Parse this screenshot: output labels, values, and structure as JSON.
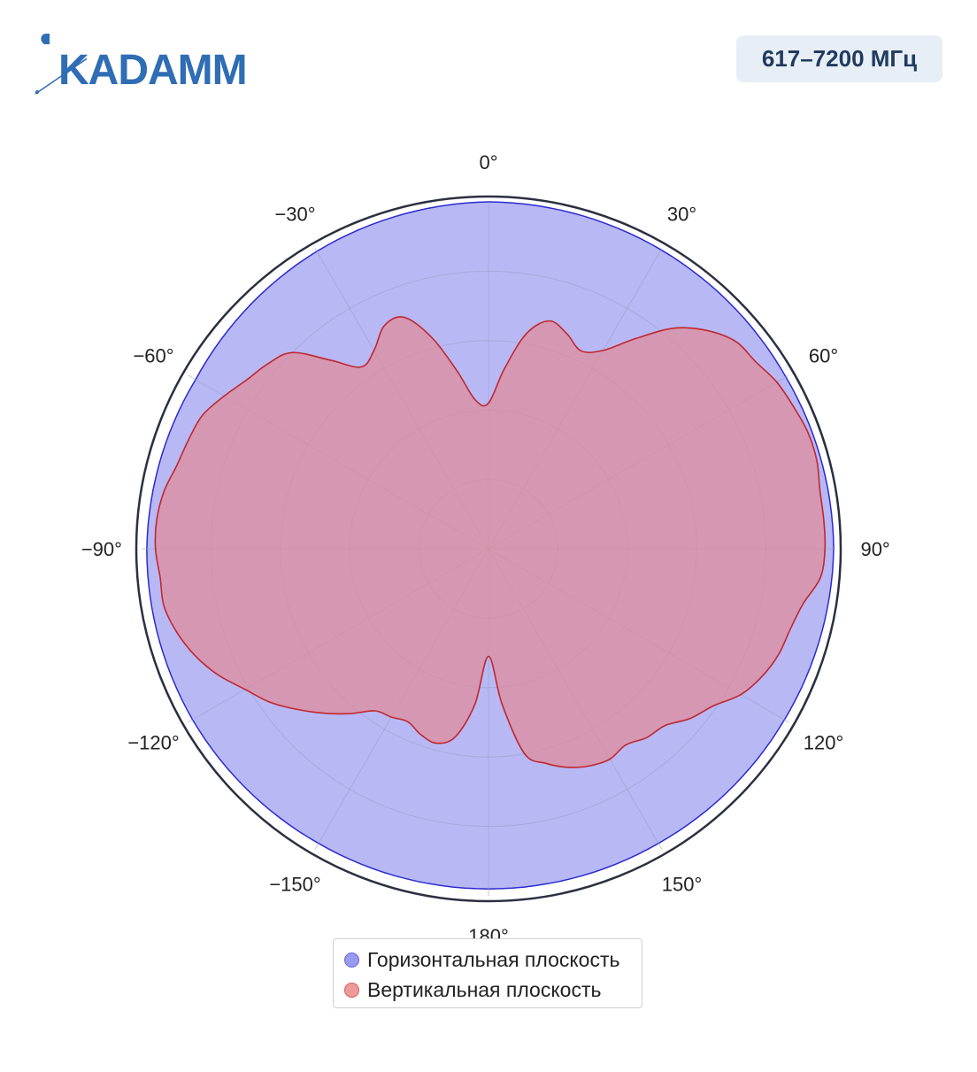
{
  "header": {
    "logo_text": "KADAMM",
    "frequency_badge": "617–7200 МГц"
  },
  "colors": {
    "horizontal_fill": "#b8b8f5",
    "horizontal_stroke": "#2a2ad0",
    "vertical_fill": "#e08a98",
    "vertical_stroke": "#c0272d",
    "outer_ring": "#2b3040",
    "grid": "#9aa2c8",
    "badge_text": "#1f3b60",
    "logo": "#2f6db5"
  },
  "chart_data": {
    "type": "polar",
    "title": "",
    "angular_unit": "degrees",
    "angular_direction": "clockwise",
    "zero_at": "top",
    "angle_labels": [
      "0°",
      "30°",
      "60°",
      "90°",
      "120°",
      "150°",
      "180°",
      "−150°",
      "−120°",
      "−90°",
      "−60°",
      "−30°"
    ],
    "radial_range": [
      0,
      1
    ],
    "grid": true,
    "legend_position": "bottom",
    "series": [
      {
        "name": "Горизонтальная плоскость",
        "color": "#b8b8f5",
        "angles": [
          0,
          30,
          60,
          90,
          120,
          150,
          180,
          -150,
          -120,
          -90,
          -60,
          -30
        ],
        "values": [
          1.0,
          0.995,
          0.99,
          0.995,
          0.985,
          0.98,
          0.98,
          0.98,
          0.985,
          0.985,
          0.975,
          0.99
        ]
      },
      {
        "name": "Вертикальная плоскость",
        "color": "#e08a98",
        "angles": [
          0,
          5,
          10,
          15,
          20,
          25,
          30,
          35,
          40,
          45,
          50,
          55,
          60,
          65,
          70,
          75,
          80,
          85,
          90,
          95,
          100,
          105,
          110,
          115,
          120,
          125,
          130,
          135,
          140,
          145,
          150,
          155,
          160,
          165,
          170,
          175,
          180,
          -175,
          -170,
          -165,
          -160,
          -155,
          -150,
          -145,
          -140,
          -135,
          -130,
          -125,
          -120,
          -115,
          -110,
          -105,
          -100,
          -95,
          -90,
          -85,
          -80,
          -75,
          -70,
          -65,
          -60,
          -55,
          -50,
          -45,
          -40,
          -35,
          -30,
          -25,
          -20,
          -15,
          -10,
          -5
        ],
        "values": [
          0.42,
          0.52,
          0.63,
          0.68,
          0.66,
          0.63,
          0.66,
          0.74,
          0.83,
          0.89,
          0.93,
          0.94,
          0.96,
          0.97,
          0.98,
          0.98,
          0.97,
          0.97,
          0.97,
          0.96,
          0.92,
          0.9,
          0.89,
          0.87,
          0.84,
          0.79,
          0.76,
          0.72,
          0.71,
          0.69,
          0.7,
          0.69,
          0.67,
          0.64,
          0.6,
          0.45,
          0.31,
          0.45,
          0.55,
          0.58,
          0.57,
          0.55,
          0.56,
          0.57,
          0.62,
          0.67,
          0.72,
          0.77,
          0.81,
          0.86,
          0.9,
          0.93,
          0.95,
          0.95,
          0.96,
          0.96,
          0.95,
          0.93,
          0.92,
          0.91,
          0.88,
          0.85,
          0.83,
          0.8,
          0.71,
          0.64,
          0.66,
          0.71,
          0.71,
          0.63,
          0.52,
          0.43
        ]
      }
    ]
  }
}
